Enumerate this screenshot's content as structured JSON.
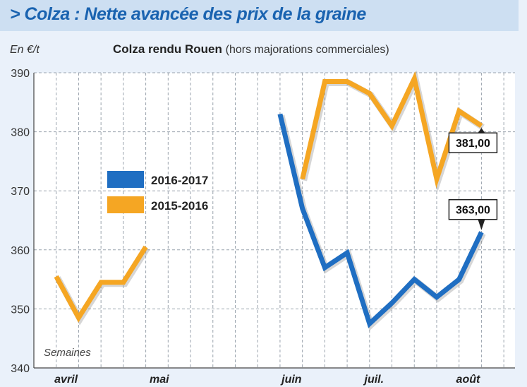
{
  "header": {
    "title": "> Colza : Nette avancée des prix de la graine"
  },
  "colors": {
    "banner": "#cddff2",
    "title": "#1a63b0",
    "series_2016_2017": "#1f6ec2",
    "series_2015_2016": "#f5a623",
    "background": "#eaf1fa"
  },
  "chart_data": {
    "type": "line",
    "title": "Colza rendu Rouen",
    "subtitle": "(hors majorations commerciales)",
    "ylabel": "En €/t",
    "xlabel": "Semaines",
    "ylim": [
      340,
      390
    ],
    "yticks": [
      340,
      350,
      360,
      370,
      380,
      390
    ],
    "xticks": [
      "avril mai",
      "juin",
      "juil.",
      "août"
    ],
    "x_weeks": [
      1,
      2,
      3,
      4,
      5,
      6,
      7,
      8,
      9,
      10,
      11,
      12,
      13,
      14,
      15,
      16,
      17,
      18,
      19,
      20,
      21,
      22,
      23,
      24,
      25,
      26,
      27,
      28
    ],
    "grid": true,
    "legend": {
      "position": "center-left",
      "entries": [
        "2016-2017",
        "2015-2016"
      ]
    },
    "series": [
      {
        "name": "2016-2017",
        "color": "#1f6ec2",
        "points": [
          [
            11,
            383
          ],
          [
            12,
            367
          ],
          [
            13,
            357
          ],
          [
            14,
            359.5
          ],
          [
            15,
            347.5
          ],
          [
            16,
            351
          ],
          [
            17,
            355
          ],
          [
            18,
            352
          ],
          [
            19,
            355
          ],
          [
            20,
            363
          ]
        ]
      },
      {
        "name": "2015-2016",
        "color": "#f5a623",
        "segments": [
          [
            [
              1,
              355.5
            ],
            [
              2,
              348.5
            ],
            [
              3,
              354.5
            ],
            [
              4,
              354.5
            ],
            [
              5,
              360.5
            ]
          ],
          [
            [
              12,
              372
            ],
            [
              13,
              388.5
            ],
            [
              14,
              388.5
            ],
            [
              15,
              386.5
            ],
            [
              16,
              381
            ],
            [
              17,
              389
            ],
            [
              18,
              372
            ],
            [
              19,
              383.5
            ],
            [
              20,
              381
            ]
          ]
        ]
      }
    ],
    "annotations": [
      {
        "text": "381,00",
        "series": "2015-2016",
        "x": 20,
        "y": 381
      },
      {
        "text": "363,00",
        "series": "2016-2017",
        "x": 20,
        "y": 363
      }
    ]
  }
}
